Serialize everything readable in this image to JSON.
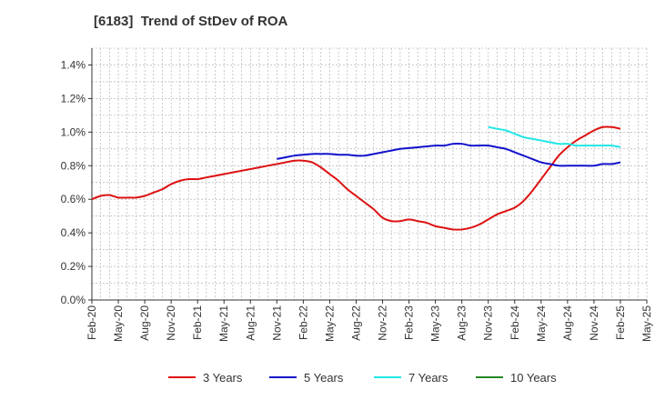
{
  "chart_data": {
    "type": "line",
    "title": "[6183]  Trend of StDev of ROA",
    "xlabel": "",
    "ylabel": "",
    "ylim": [
      0,
      0.015
    ],
    "y_ticks": [
      "0.0%",
      "0.2%",
      "0.4%",
      "0.6%",
      "0.8%",
      "1.0%",
      "1.2%",
      "1.4%"
    ],
    "x_ticks": [
      "Feb-20",
      "May-20",
      "Aug-20",
      "Nov-20",
      "Feb-21",
      "May-21",
      "Aug-21",
      "Nov-21",
      "Feb-22",
      "May-22",
      "Aug-22",
      "Nov-22",
      "Feb-23",
      "May-23",
      "Aug-23",
      "Nov-23",
      "Feb-24",
      "May-24",
      "Aug-24",
      "Nov-24",
      "Feb-25",
      "May-25"
    ],
    "grid": true,
    "legend_position": "bottom",
    "series": [
      {
        "name": "3 Years",
        "color": "#dd1111",
        "points": [
          [
            "Feb-20",
            0.006
          ],
          [
            "Mar-20",
            0.0062
          ],
          [
            "Apr-20",
            0.00625
          ],
          [
            "May-20",
            0.0061
          ],
          [
            "Jun-20",
            0.0061
          ],
          [
            "Jul-20",
            0.0061
          ],
          [
            "Aug-20",
            0.0062
          ],
          [
            "Sep-20",
            0.0064
          ],
          [
            "Oct-20",
            0.0066
          ],
          [
            "Nov-20",
            0.0069
          ],
          [
            "Dec-20",
            0.0071
          ],
          [
            "Jan-21",
            0.0072
          ],
          [
            "Feb-21",
            0.0072
          ],
          [
            "Mar-21",
            0.0073
          ],
          [
            "Apr-21",
            0.0074
          ],
          [
            "May-21",
            0.0075
          ],
          [
            "Jun-21",
            0.0076
          ],
          [
            "Jul-21",
            0.0077
          ],
          [
            "Aug-21",
            0.0078
          ],
          [
            "Sep-21",
            0.0079
          ],
          [
            "Oct-21",
            0.008
          ],
          [
            "Nov-21",
            0.0081
          ],
          [
            "Dec-21",
            0.0082
          ],
          [
            "Jan-22",
            0.0083
          ],
          [
            "Feb-22",
            0.0083
          ],
          [
            "Mar-22",
            0.0082
          ],
          [
            "Apr-22",
            0.0079
          ],
          [
            "May-22",
            0.0075
          ],
          [
            "Jun-22",
            0.0071
          ],
          [
            "Jul-22",
            0.0066
          ],
          [
            "Aug-22",
            0.0062
          ],
          [
            "Sep-22",
            0.0058
          ],
          [
            "Oct-22",
            0.0054
          ],
          [
            "Nov-22",
            0.0049
          ],
          [
            "Dec-22",
            0.0047
          ],
          [
            "Jan-23",
            0.0047
          ],
          [
            "Feb-23",
            0.0048
          ],
          [
            "Mar-23",
            0.0047
          ],
          [
            "Apr-23",
            0.0046
          ],
          [
            "May-23",
            0.0044
          ],
          [
            "Jun-23",
            0.0043
          ],
          [
            "Jul-23",
            0.0042
          ],
          [
            "Aug-23",
            0.0042
          ],
          [
            "Sep-23",
            0.0043
          ],
          [
            "Oct-23",
            0.0045
          ],
          [
            "Nov-23",
            0.0048
          ],
          [
            "Dec-23",
            0.0051
          ],
          [
            "Jan-24",
            0.0053
          ],
          [
            "Feb-24",
            0.0055
          ],
          [
            "Mar-24",
            0.0059
          ],
          [
            "Apr-24",
            0.0065
          ],
          [
            "May-24",
            0.0072
          ],
          [
            "Jun-24",
            0.0079
          ],
          [
            "Jul-24",
            0.0086
          ],
          [
            "Aug-24",
            0.0091
          ],
          [
            "Sep-24",
            0.0095
          ],
          [
            "Oct-24",
            0.0098
          ],
          [
            "Nov-24",
            0.0101
          ],
          [
            "Dec-24",
            0.0103
          ],
          [
            "Jan-25",
            0.0103
          ],
          [
            "Feb-25",
            0.0102
          ]
        ]
      },
      {
        "name": "5 Years",
        "color": "#1111cc",
        "points": [
          [
            "Nov-21",
            0.0084
          ],
          [
            "Dec-21",
            0.0085
          ],
          [
            "Jan-22",
            0.0086
          ],
          [
            "Feb-22",
            0.00865
          ],
          [
            "Mar-22",
            0.0087
          ],
          [
            "Apr-22",
            0.0087
          ],
          [
            "May-22",
            0.0087
          ],
          [
            "Jun-22",
            0.00865
          ],
          [
            "Jul-22",
            0.00865
          ],
          [
            "Aug-22",
            0.0086
          ],
          [
            "Sep-22",
            0.0086
          ],
          [
            "Oct-22",
            0.0087
          ],
          [
            "Nov-22",
            0.0088
          ],
          [
            "Dec-22",
            0.0089
          ],
          [
            "Jan-23",
            0.009
          ],
          [
            "Feb-23",
            0.00905
          ],
          [
            "Mar-23",
            0.0091
          ],
          [
            "Apr-23",
            0.00915
          ],
          [
            "May-23",
            0.0092
          ],
          [
            "Jun-23",
            0.0092
          ],
          [
            "Jul-23",
            0.0093
          ],
          [
            "Aug-23",
            0.0093
          ],
          [
            "Sep-23",
            0.0092
          ],
          [
            "Oct-23",
            0.0092
          ],
          [
            "Nov-23",
            0.0092
          ],
          [
            "Dec-23",
            0.0091
          ],
          [
            "Jan-24",
            0.009
          ],
          [
            "Feb-24",
            0.0088
          ],
          [
            "Mar-24",
            0.0086
          ],
          [
            "Apr-24",
            0.0084
          ],
          [
            "May-24",
            0.0082
          ],
          [
            "Jun-24",
            0.0081
          ],
          [
            "Jul-24",
            0.008
          ],
          [
            "Aug-24",
            0.008
          ],
          [
            "Sep-24",
            0.008
          ],
          [
            "Oct-24",
            0.008
          ],
          [
            "Nov-24",
            0.008
          ],
          [
            "Dec-24",
            0.0081
          ],
          [
            "Jan-25",
            0.0081
          ],
          [
            "Feb-25",
            0.0082
          ]
        ]
      },
      {
        "name": "7 Years",
        "color": "#22e6e6",
        "points": [
          [
            "Nov-23",
            0.0103
          ],
          [
            "Dec-23",
            0.0102
          ],
          [
            "Jan-24",
            0.0101
          ],
          [
            "Feb-24",
            0.0099
          ],
          [
            "Mar-24",
            0.0097
          ],
          [
            "Apr-24",
            0.0096
          ],
          [
            "May-24",
            0.0095
          ],
          [
            "Jun-24",
            0.0094
          ],
          [
            "Jul-24",
            0.0093
          ],
          [
            "Aug-24",
            0.0093
          ],
          [
            "Sep-24",
            0.0092
          ],
          [
            "Oct-24",
            0.0092
          ],
          [
            "Nov-24",
            0.0092
          ],
          [
            "Dec-24",
            0.0092
          ],
          [
            "Jan-25",
            0.0092
          ],
          [
            "Feb-25",
            0.0091
          ]
        ]
      },
      {
        "name": "10 Years",
        "color": "#228822",
        "points": []
      }
    ]
  }
}
